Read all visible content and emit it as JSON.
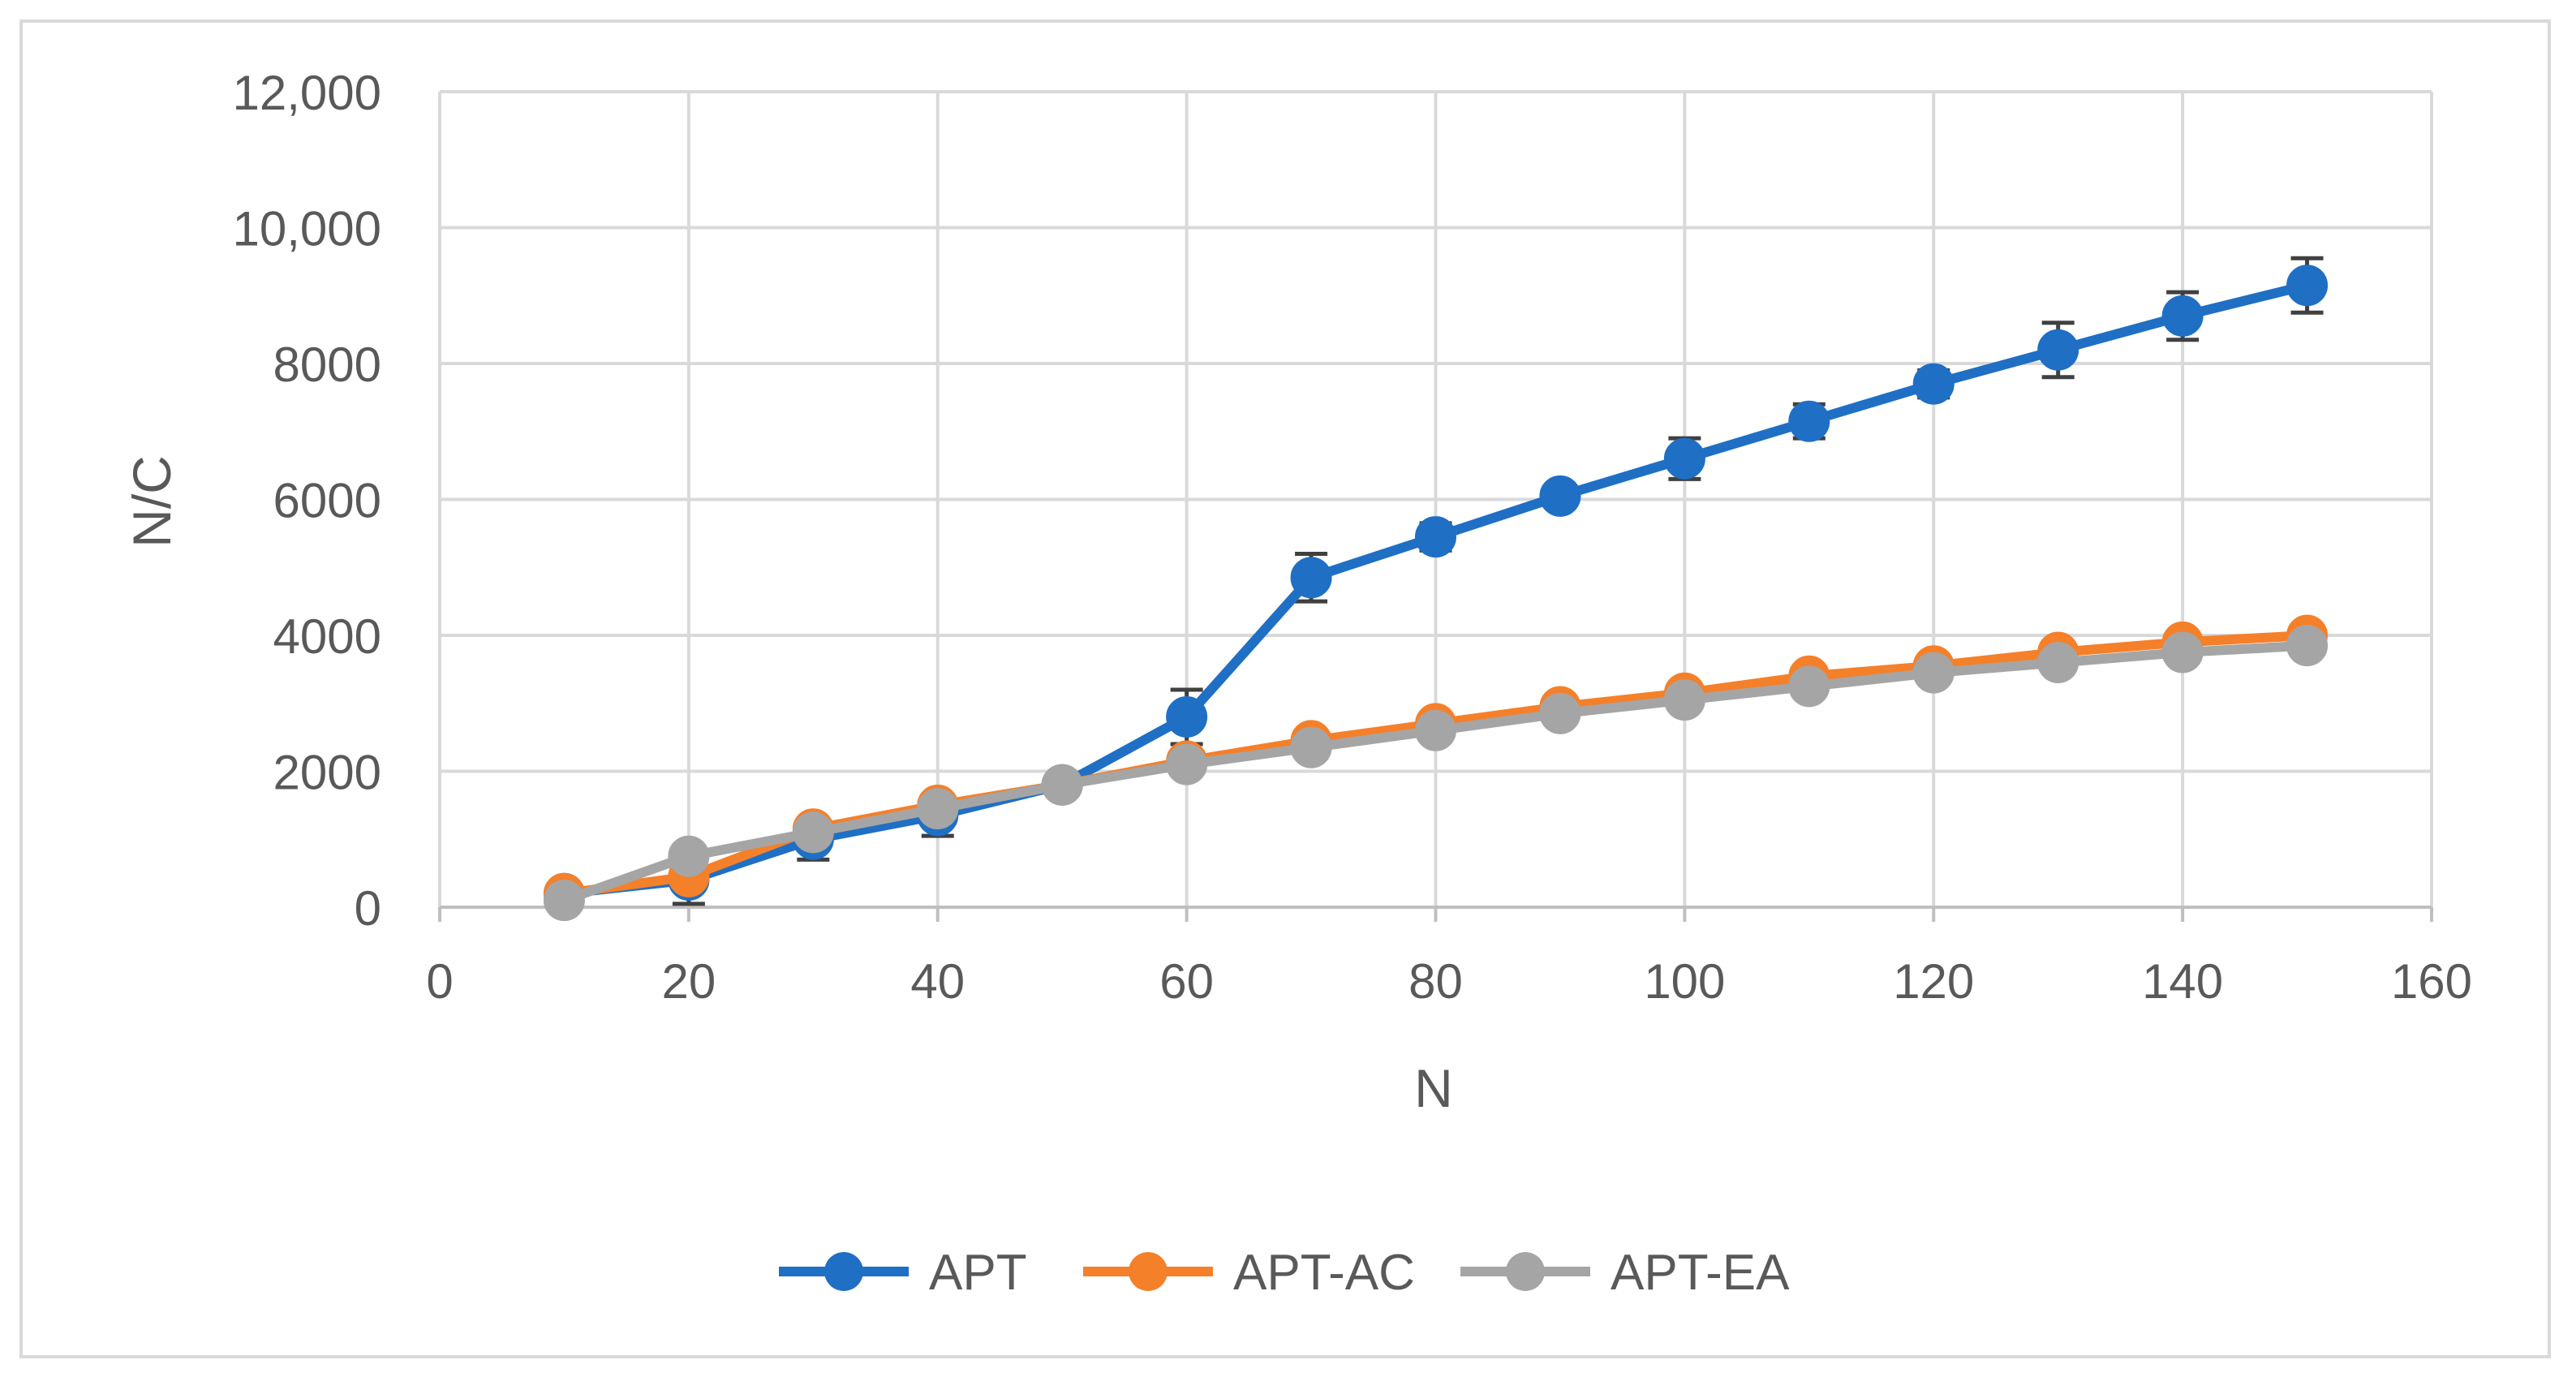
{
  "chart_data": {
    "type": "line",
    "title": "",
    "xlabel": "N",
    "ylabel": "N/C",
    "xlim": [
      0,
      160
    ],
    "ylim": [
      0,
      12000
    ],
    "x_ticks": [
      0,
      20,
      40,
      60,
      80,
      100,
      120,
      140,
      160
    ],
    "x_tick_labels": [
      "0",
      "20",
      "40",
      "60",
      "80",
      "100",
      "120",
      "140",
      "160"
    ],
    "y_ticks": [
      0,
      2000,
      4000,
      6000,
      8000,
      10000,
      12000
    ],
    "y_tick_labels": [
      "0",
      "2000",
      "4000",
      "6000",
      "8000",
      "10,000",
      "12,000"
    ],
    "grid": true,
    "legend_position": "bottom",
    "x": [
      10,
      20,
      30,
      40,
      50,
      60,
      70,
      80,
      90,
      100,
      110,
      120,
      130,
      140,
      150
    ],
    "series": [
      {
        "name": "APT",
        "color": "#1f6fc5",
        "values": [
          200,
          400,
          1000,
          1350,
          1800,
          2800,
          4850,
          5450,
          6050,
          6600,
          7150,
          7700,
          8200,
          8700,
          9150
        ],
        "error": [
          150,
          350,
          300,
          300,
          150,
          400,
          350,
          200,
          150,
          300,
          250,
          200,
          400,
          350,
          400
        ]
      },
      {
        "name": "APT-AC",
        "color": "#f5802a",
        "values": [
          200,
          450,
          1150,
          1500,
          1800,
          2150,
          2450,
          2700,
          2950,
          3150,
          3400,
          3550,
          3750,
          3900,
          4000
        ],
        "error": [
          80,
          100,
          100,
          100,
          100,
          100,
          100,
          100,
          100,
          100,
          100,
          100,
          100,
          100,
          100
        ]
      },
      {
        "name": "APT-EA",
        "color": "#a5a5a5",
        "values": [
          100,
          750,
          1100,
          1450,
          1800,
          2100,
          2350,
          2600,
          2850,
          3050,
          3250,
          3450,
          3600,
          3750,
          3850
        ],
        "error": [
          60,
          80,
          80,
          80,
          80,
          80,
          80,
          80,
          80,
          80,
          80,
          80,
          80,
          80,
          80
        ]
      }
    ]
  }
}
